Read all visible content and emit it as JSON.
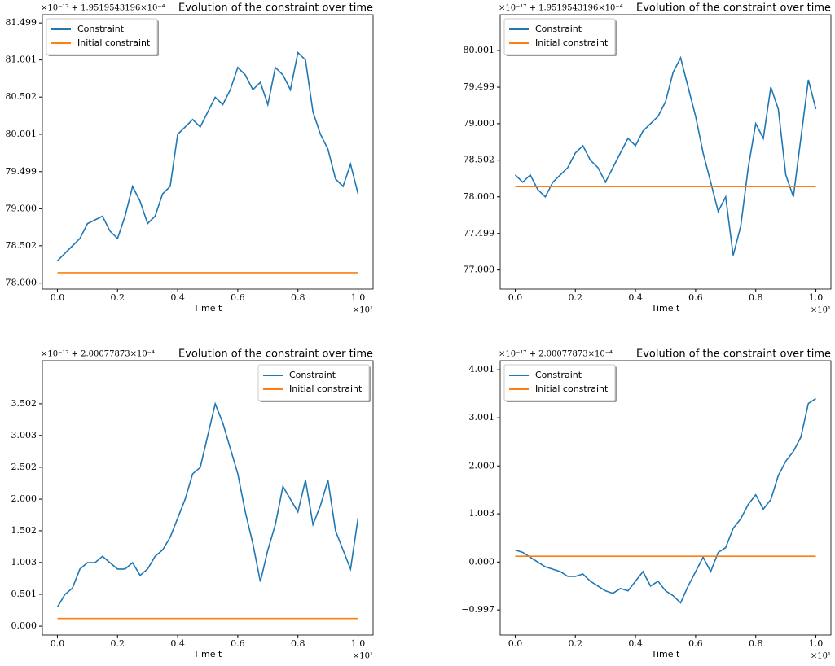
{
  "chart_data": [
    {
      "type": "line",
      "title": "Evolution of the constraint over time",
      "x_label": "Time t",
      "x_offset": "×10¹",
      "y_offset": "×10⁻¹⁷ + 1.9519543196×10⁻⁴",
      "legend": "upper left",
      "x": [
        0,
        0.025,
        0.05,
        0.075,
        0.1,
        0.125,
        0.15,
        0.175,
        0.2,
        0.225,
        0.25,
        0.275,
        0.3,
        0.325,
        0.35,
        0.375,
        0.4,
        0.425,
        0.45,
        0.475,
        0.5,
        0.525,
        0.55,
        0.575,
        0.6,
        0.625,
        0.65,
        0.675,
        0.7,
        0.725,
        0.75,
        0.775,
        0.8,
        0.825,
        0.85,
        0.875,
        0.9,
        0.925,
        0.95,
        0.975,
        1.0
      ],
      "series": [
        {
          "name": "Constraint",
          "color": "#1f77b4",
          "values": [
            78.3,
            78.4,
            78.5,
            78.6,
            78.8,
            78.85,
            78.9,
            78.7,
            78.6,
            78.9,
            79.3,
            79.1,
            78.8,
            78.9,
            79.2,
            79.3,
            80.0,
            80.1,
            80.2,
            80.1,
            80.3,
            80.5,
            80.4,
            80.6,
            80.9,
            80.8,
            80.6,
            80.7,
            80.4,
            80.9,
            80.8,
            80.6,
            81.1,
            81.0,
            80.3,
            80.0,
            79.8,
            79.4,
            79.3,
            79.6,
            79.2
          ]
        },
        {
          "name": "Initial constraint",
          "color": "#ff7f0e",
          "values": [
            78.14,
            78.14,
            78.14,
            78.14,
            78.14,
            78.14,
            78.14,
            78.14,
            78.14,
            78.14,
            78.14,
            78.14,
            78.14,
            78.14,
            78.14,
            78.14,
            78.14,
            78.14,
            78.14,
            78.14,
            78.14,
            78.14,
            78.14,
            78.14,
            78.14,
            78.14,
            78.14,
            78.14,
            78.14,
            78.14,
            78.14,
            78.14,
            78.14,
            78.14,
            78.14,
            78.14,
            78.14,
            78.14,
            78.14,
            78.14,
            78.14
          ]
        }
      ],
      "xlim": [
        -0.05,
        1.05
      ],
      "xticks": [
        {
          "value": 0,
          "label": "0.0"
        },
        0.2,
        0.4,
        0.6,
        0.8,
        {
          "value": 1,
          "label": "1.0"
        }
      ],
      "ylim": [
        77.92,
        81.61
      ],
      "yticks": [
        {
          "value": 78,
          "label": "78.000"
        },
        78.502,
        {
          "value": 79,
          "label": "79.000"
        },
        79.499,
        80.001,
        80.502,
        81.001,
        81.499
      ]
    },
    {
      "type": "line",
      "title": "Evolution of the constraint over time",
      "x_label": "Time t",
      "x_offset": "×10¹",
      "y_offset": "×10⁻¹⁷ + 1.9519543196×10⁻⁴",
      "legend": "upper left",
      "x": [
        0,
        0.025,
        0.05,
        0.075,
        0.1,
        0.125,
        0.15,
        0.175,
        0.2,
        0.225,
        0.25,
        0.275,
        0.3,
        0.325,
        0.35,
        0.375,
        0.4,
        0.425,
        0.45,
        0.475,
        0.5,
        0.525,
        0.55,
        0.575,
        0.6,
        0.625,
        0.65,
        0.675,
        0.7,
        0.725,
        0.75,
        0.775,
        0.8,
        0.825,
        0.85,
        0.875,
        0.9,
        0.925,
        0.95,
        0.975,
        1.0
      ],
      "series": [
        {
          "name": "Constraint",
          "color": "#1f77b4",
          "values": [
            78.3,
            78.2,
            78.3,
            78.1,
            78.0,
            78.2,
            78.3,
            78.4,
            78.6,
            78.7,
            78.5,
            78.4,
            78.2,
            78.4,
            78.6,
            78.8,
            78.7,
            78.9,
            79.0,
            79.1,
            79.3,
            79.7,
            79.9,
            79.5,
            79.1,
            78.6,
            78.2,
            77.8,
            78.0,
            77.2,
            77.6,
            78.4,
            79.0,
            78.8,
            79.5,
            79.2,
            78.3,
            78.0,
            78.8,
            79.6,
            79.2
          ]
        },
        {
          "name": "Initial constraint",
          "color": "#ff7f0e",
          "values": [
            78.14,
            78.14,
            78.14,
            78.14,
            78.14,
            78.14,
            78.14,
            78.14,
            78.14,
            78.14,
            78.14,
            78.14,
            78.14,
            78.14,
            78.14,
            78.14,
            78.14,
            78.14,
            78.14,
            78.14,
            78.14,
            78.14,
            78.14,
            78.14,
            78.14,
            78.14,
            78.14,
            78.14,
            78.14,
            78.14,
            78.14,
            78.14,
            78.14,
            78.14,
            78.14,
            78.14,
            78.14,
            78.14,
            78.14,
            78.14,
            78.14
          ]
        }
      ],
      "xlim": [
        -0.05,
        1.05
      ],
      "xticks": [
        {
          "value": 0,
          "label": "0.0"
        },
        0.2,
        0.4,
        0.6,
        0.8,
        {
          "value": 1,
          "label": "1.0"
        }
      ],
      "ylim": [
        76.74,
        80.49
      ],
      "yticks": [
        {
          "value": 77,
          "label": "77.000"
        },
        77.499,
        {
          "value": 78,
          "label": "78.000"
        },
        78.502,
        {
          "value": 79,
          "label": "79.000"
        },
        79.499,
        80.001
      ]
    },
    {
      "type": "line",
      "title": "Evolution of the constraint over time",
      "x_label": "Time t",
      "x_offset": "×10¹",
      "y_offset": "×10⁻¹⁷ + 2.00077873×10⁻⁴",
      "legend": "upper right",
      "x": [
        0,
        0.025,
        0.05,
        0.075,
        0.1,
        0.125,
        0.15,
        0.175,
        0.2,
        0.225,
        0.25,
        0.275,
        0.3,
        0.325,
        0.35,
        0.375,
        0.4,
        0.425,
        0.45,
        0.475,
        0.5,
        0.525,
        0.55,
        0.575,
        0.6,
        0.625,
        0.65,
        0.675,
        0.7,
        0.725,
        0.75,
        0.775,
        0.8,
        0.825,
        0.85,
        0.875,
        0.9,
        0.925,
        0.95,
        0.975,
        1.0
      ],
      "series": [
        {
          "name": "Constraint",
          "color": "#1f77b4",
          "values": [
            0.3,
            0.5,
            0.6,
            0.9,
            1.0,
            1.0,
            1.1,
            1.0,
            0.9,
            0.9,
            1.0,
            0.8,
            0.9,
            1.1,
            1.2,
            1.4,
            1.7,
            2.0,
            2.4,
            2.5,
            3.0,
            3.5,
            3.2,
            2.8,
            2.4,
            1.8,
            1.3,
            0.7,
            1.2,
            1.6,
            2.2,
            2.0,
            1.8,
            2.3,
            1.6,
            1.9,
            2.3,
            1.5,
            1.2,
            0.9,
            1.7
          ]
        },
        {
          "name": "Initial constraint",
          "color": "#ff7f0e",
          "values": [
            0.12,
            0.12,
            0.12,
            0.12,
            0.12,
            0.12,
            0.12,
            0.12,
            0.12,
            0.12,
            0.12,
            0.12,
            0.12,
            0.12,
            0.12,
            0.12,
            0.12,
            0.12,
            0.12,
            0.12,
            0.12,
            0.12,
            0.12,
            0.12,
            0.12,
            0.12,
            0.12,
            0.12,
            0.12,
            0.12,
            0.12,
            0.12,
            0.12,
            0.12,
            0.12,
            0.12,
            0.12,
            0.12,
            0.12,
            0.12,
            0.12
          ]
        }
      ],
      "xlim": [
        -0.05,
        1.05
      ],
      "xticks": [
        {
          "value": 0,
          "label": "0.0"
        },
        0.2,
        0.4,
        0.6,
        0.8,
        {
          "value": 1,
          "label": "1.0"
        }
      ],
      "ylim": [
        -0.14,
        4.18
      ],
      "yticks": [
        {
          "value": 0,
          "label": "0.000"
        },
        0.501,
        1.003,
        1.502,
        {
          "value": 2,
          "label": "2.000"
        },
        2.502,
        3.003,
        3.502
      ]
    },
    {
      "type": "line",
      "title": "Evolution of the constraint over time",
      "x_label": "Time t",
      "x_offset": "×10¹",
      "y_offset": "×10⁻¹⁷ + 2.00077873×10⁻⁴",
      "legend": "upper left",
      "x": [
        0,
        0.025,
        0.05,
        0.075,
        0.1,
        0.125,
        0.15,
        0.175,
        0.2,
        0.225,
        0.25,
        0.275,
        0.3,
        0.325,
        0.35,
        0.375,
        0.4,
        0.425,
        0.45,
        0.475,
        0.5,
        0.525,
        0.55,
        0.575,
        0.6,
        0.625,
        0.65,
        0.675,
        0.7,
        0.725,
        0.75,
        0.775,
        0.8,
        0.825,
        0.85,
        0.875,
        0.9,
        0.925,
        0.95,
        0.975,
        1.0
      ],
      "series": [
        {
          "name": "Constraint",
          "color": "#1f77b4",
          "values": [
            0.25,
            0.2,
            0.1,
            0.0,
            -0.1,
            -0.15,
            -0.2,
            -0.3,
            -0.3,
            -0.25,
            -0.4,
            -0.5,
            -0.6,
            -0.65,
            -0.55,
            -0.6,
            -0.4,
            -0.2,
            -0.5,
            -0.4,
            -0.6,
            -0.7,
            -0.85,
            -0.5,
            -0.2,
            0.1,
            -0.2,
            0.2,
            0.3,
            0.7,
            0.9,
            1.2,
            1.4,
            1.1,
            1.3,
            1.8,
            2.1,
            2.3,
            2.6,
            3.3,
            3.4
          ]
        },
        {
          "name": "Initial constraint",
          "color": "#ff7f0e",
          "values": [
            0.12,
            0.12,
            0.12,
            0.12,
            0.12,
            0.12,
            0.12,
            0.12,
            0.12,
            0.12,
            0.12,
            0.12,
            0.12,
            0.12,
            0.12,
            0.12,
            0.12,
            0.12,
            0.12,
            0.12,
            0.12,
            0.12,
            0.12,
            0.12,
            0.12,
            0.12,
            0.12,
            0.12,
            0.12,
            0.12,
            0.12,
            0.12,
            0.12,
            0.12,
            0.12,
            0.12,
            0.12,
            0.12,
            0.12,
            0.12,
            0.12
          ]
        }
      ],
      "xlim": [
        -0.05,
        1.05
      ],
      "xticks": [
        {
          "value": 0,
          "label": "0.0"
        },
        0.2,
        0.4,
        0.6,
        0.8,
        {
          "value": 1,
          "label": "1.0"
        }
      ],
      "ylim": [
        -1.52,
        4.19
      ],
      "yticks": [
        {
          "value": -0.997,
          "label": "−0.997"
        },
        {
          "value": 0,
          "label": "0.000"
        },
        1.003,
        {
          "value": 2,
          "label": "2.000"
        },
        3.001,
        4.001
      ]
    }
  ]
}
